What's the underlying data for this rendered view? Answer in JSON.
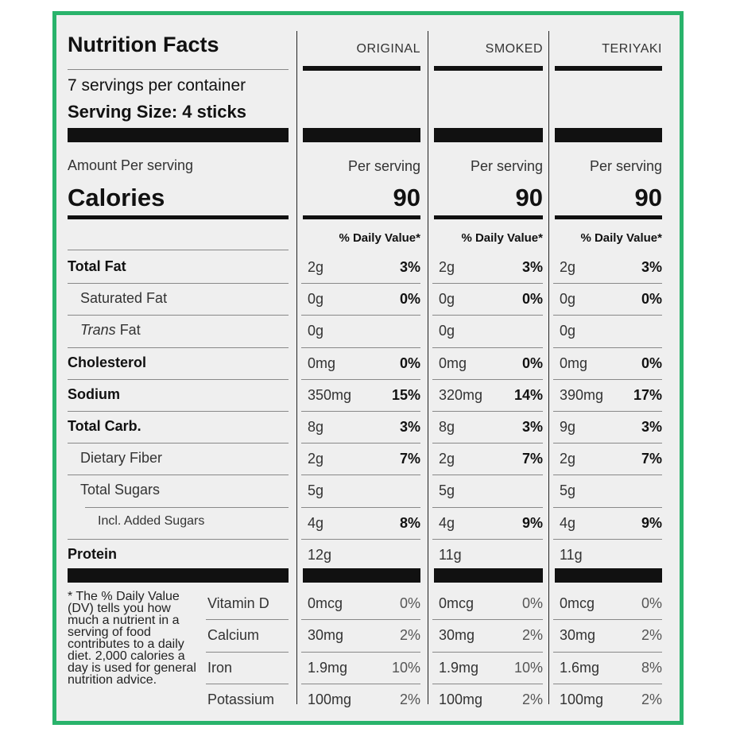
{
  "panel": {
    "title": "Nutrition Facts",
    "servings": "7 servings per container",
    "serving_size": "Serving Size: 4 sticks",
    "amount_per": "Amount Per serving",
    "calories_label": "Calories",
    "footnote": "* The % Daily Value (DV) tells you how much a nutrient in a serving of food contributes to a daily diet. 2,000 calories a day is used for general nutrition advice."
  },
  "columns": [
    {
      "name": "ORIGINAL",
      "per": "Per serving",
      "calories": "90",
      "dv_header": "% Daily Value*"
    },
    {
      "name": "SMOKED",
      "per": "Per serving",
      "calories": "90",
      "dv_header": "% Daily Value*"
    },
    {
      "name": "TERIYAKI",
      "per": "Per serving",
      "calories": "90",
      "dv_header": "% Daily Value*"
    }
  ],
  "nutrients": [
    {
      "label": "Total Fat",
      "values": [
        [
          "2g",
          "3%"
        ],
        [
          "2g",
          "3%"
        ],
        [
          "2g",
          "3%"
        ]
      ]
    },
    {
      "label": "Saturated Fat",
      "values": [
        [
          "0g",
          "0%"
        ],
        [
          "0g",
          "0%"
        ],
        [
          "0g",
          "0%"
        ]
      ]
    },
    {
      "label_italic": "Trans",
      "label": " Fat",
      "values": [
        [
          "0g",
          ""
        ],
        [
          "0g",
          ""
        ],
        [
          "0g",
          ""
        ]
      ]
    },
    {
      "label": "Cholesterol",
      "values": [
        [
          "0mg",
          "0%"
        ],
        [
          "0mg",
          "0%"
        ],
        [
          "0mg",
          "0%"
        ]
      ]
    },
    {
      "label": "Sodium",
      "values": [
        [
          "350mg",
          "15%"
        ],
        [
          "320mg",
          "14%"
        ],
        [
          "390mg",
          "17%"
        ]
      ]
    },
    {
      "label": "Total Carb.",
      "values": [
        [
          "8g",
          "3%"
        ],
        [
          "8g",
          "3%"
        ],
        [
          "9g",
          "3%"
        ]
      ]
    },
    {
      "label": "Dietary Fiber",
      "values": [
        [
          "2g",
          "7%"
        ],
        [
          "2g",
          "7%"
        ],
        [
          "2g",
          "7%"
        ]
      ]
    },
    {
      "label": "Total Sugars",
      "values": [
        [
          "5g",
          ""
        ],
        [
          "5g",
          ""
        ],
        [
          "5g",
          ""
        ]
      ]
    },
    {
      "label": "Incl. Added Sugars",
      "values": [
        [
          "4g",
          "8%"
        ],
        [
          "4g",
          "9%"
        ],
        [
          "4g",
          "9%"
        ]
      ]
    },
    {
      "label": "Protein",
      "values": [
        [
          "12g",
          ""
        ],
        [
          "11g",
          ""
        ],
        [
          "11g",
          ""
        ]
      ]
    }
  ],
  "vitamins": [
    {
      "label": "Vitamin D",
      "values": [
        [
          "0mcg",
          "0%"
        ],
        [
          "0mcg",
          "0%"
        ],
        [
          "0mcg",
          "0%"
        ]
      ]
    },
    {
      "label": "Calcium",
      "values": [
        [
          "30mg",
          "2%"
        ],
        [
          "30mg",
          "2%"
        ],
        [
          "30mg",
          "2%"
        ]
      ]
    },
    {
      "label": "Iron",
      "values": [
        [
          "1.9mg",
          "10%"
        ],
        [
          "1.9mg",
          "10%"
        ],
        [
          "1.6mg",
          "8%"
        ]
      ]
    },
    {
      "label": "Potassium",
      "values": [
        [
          "100mg",
          "2%"
        ],
        [
          "100mg",
          "2%"
        ],
        [
          "100mg",
          "2%"
        ]
      ]
    }
  ]
}
